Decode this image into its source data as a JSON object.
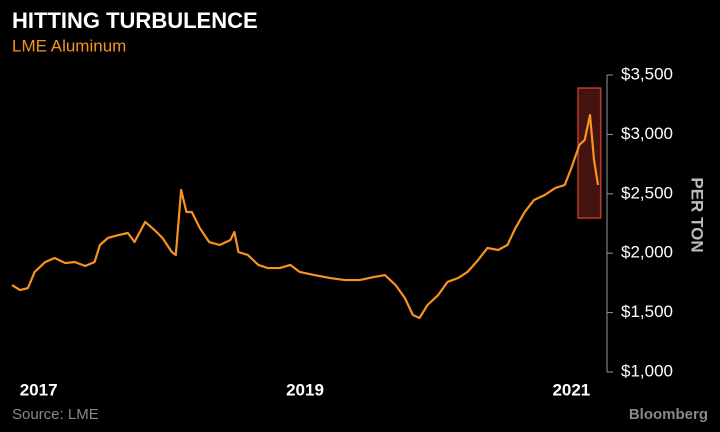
{
  "chart_data": {
    "type": "line",
    "title": "HITTING TURBULENCE",
    "subtitle": "LME Aluminum",
    "y_axis_label": "PER TON",
    "source": "Source: LME",
    "brand": "Bloomberg",
    "x": [
      2016.8,
      2016.86,
      2016.92,
      2016.97,
      2017.05,
      2017.12,
      2017.2,
      2017.27,
      2017.35,
      2017.42,
      2017.46,
      2017.52,
      2017.6,
      2017.67,
      2017.72,
      2017.8,
      2017.87,
      2017.93,
      2018.0,
      2018.03,
      2018.07,
      2018.11,
      2018.15,
      2018.21,
      2018.28,
      2018.36,
      2018.44,
      2018.47,
      2018.5,
      2018.57,
      2018.65,
      2018.72,
      2018.81,
      2018.89,
      2018.96,
      2019.07,
      2019.19,
      2019.3,
      2019.41,
      2019.52,
      2019.6,
      2019.68,
      2019.75,
      2019.81,
      2019.86,
      2019.92,
      2020.0,
      2020.07,
      2020.15,
      2020.22,
      2020.3,
      2020.37,
      2020.45,
      2020.52,
      2020.58,
      2020.65,
      2020.72,
      2020.8,
      2020.88,
      2020.95,
      2021.0,
      2021.06,
      2021.1,
      2021.14,
      2021.17,
      2021.2
    ],
    "series": [
      {
        "name": "LME Aluminum",
        "color": "#f7931e",
        "values": [
          1732,
          1690,
          1707,
          1842,
          1926,
          1960,
          1917,
          1926,
          1892,
          1926,
          2069,
          2128,
          2153,
          2170,
          2094,
          2263,
          2195,
          2128,
          2010,
          1985,
          2532,
          2347,
          2347,
          2212,
          2094,
          2069,
          2111,
          2178,
          2010,
          1985,
          1901,
          1875,
          1875,
          1901,
          1842,
          1816,
          1791,
          1774,
          1774,
          1800,
          1816,
          1732,
          1623,
          1480,
          1455,
          1564,
          1648,
          1758,
          1791,
          1842,
          1943,
          2044,
          2027,
          2069,
          2212,
          2347,
          2448,
          2490,
          2549,
          2574,
          2717,
          2911,
          2953,
          3163,
          2785,
          2574
        ]
      }
    ],
    "xlim": [
      2016.8,
      2021.2
    ],
    "xticks": [
      2017,
      2019,
      2021
    ],
    "ylim": [
      1000,
      3500
    ],
    "yticks": [
      {
        "value": 1000,
        "label": "$1,000"
      },
      {
        "value": 1500,
        "label": "$1,500"
      },
      {
        "value": 2000,
        "label": "$2,000"
      },
      {
        "value": 2500,
        "label": "$2,500"
      },
      {
        "value": 3000,
        "label": "$3,000"
      },
      {
        "value": 3500,
        "label": "$3,500"
      }
    ],
    "y_axis_side": "right",
    "grid": false,
    "highlight": {
      "x": [
        2021.05,
        2021.22
      ],
      "y": [
        2296,
        3390
      ],
      "color": "#c0392b"
    }
  }
}
